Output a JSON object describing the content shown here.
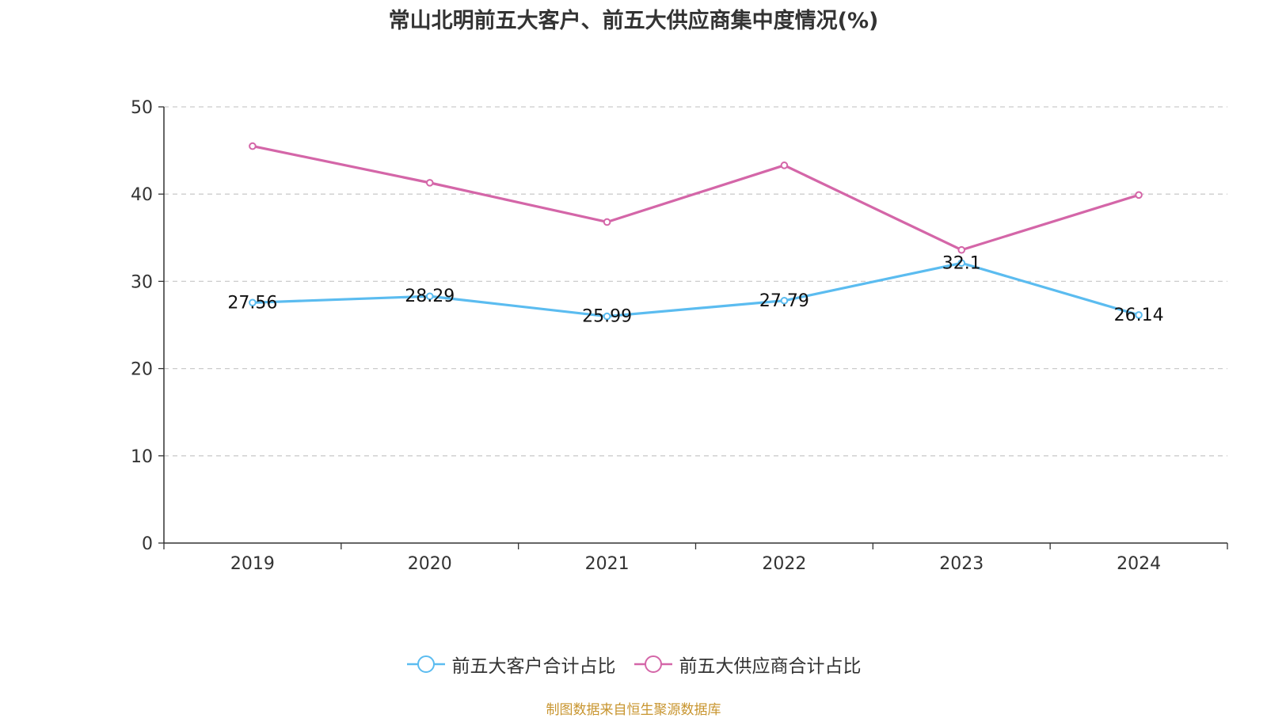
{
  "title": "常山北明前五大客户、前五大供应商集中度情况(%)",
  "source": "制图数据来自恒生聚源数据库",
  "chart_data": {
    "type": "line",
    "categories": [
      "2019",
      "2020",
      "2021",
      "2022",
      "2023",
      "2024"
    ],
    "ylim": [
      0,
      50
    ],
    "yticks": [
      0,
      10,
      20,
      30,
      40,
      50
    ],
    "grid": true,
    "legend_position": "bottom",
    "series": [
      {
        "name": "前五大客户合计占比",
        "color": "#5bbcf0",
        "values": [
          27.56,
          28.29,
          25.99,
          27.79,
          32.1,
          26.14
        ],
        "labels": [
          "27.56",
          "28.29",
          "25.99",
          "27.79",
          "32.1",
          "26.14"
        ]
      },
      {
        "name": "前五大供应商合计占比",
        "color": "#d466a8",
        "values": [
          45.5,
          41.3,
          36.8,
          43.3,
          33.6,
          39.9
        ],
        "labels": []
      }
    ]
  }
}
